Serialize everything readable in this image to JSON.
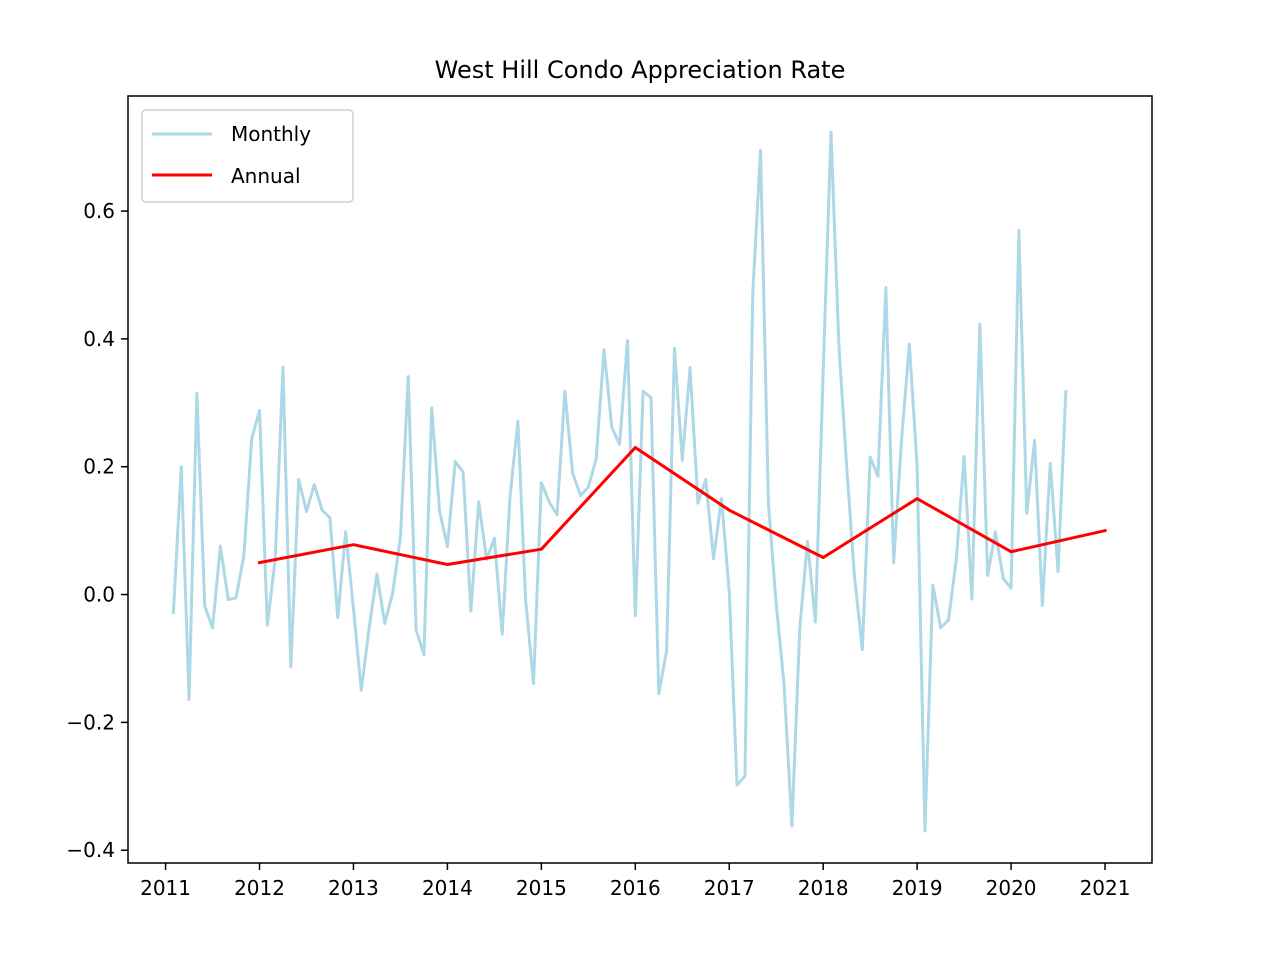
{
  "chart_data": {
    "type": "line",
    "title": "West Hill Condo Appreciation Rate",
    "xlabel": "",
    "ylabel": "",
    "xlim": [
      2010.6,
      2021.5
    ],
    "ylim": [
      -0.42,
      0.78
    ],
    "x_ticks": [
      2011,
      2012,
      2013,
      2014,
      2015,
      2016,
      2017,
      2018,
      2019,
      2020,
      2021
    ],
    "x_tick_labels": [
      "2011",
      "2012",
      "2013",
      "2014",
      "2015",
      "2016",
      "2017",
      "2018",
      "2019",
      "2020",
      "2021"
    ],
    "y_ticks": [
      -0.4,
      -0.2,
      0.0,
      0.2,
      0.4,
      0.6
    ],
    "y_tick_labels": [
      "−0.4",
      "−0.2",
      "0.0",
      "0.2",
      "0.4",
      "0.6"
    ],
    "grid": false,
    "legend_position": "top-left",
    "series": [
      {
        "name": "Monthly",
        "color": "#add8e6",
        "x": [
          2011.083,
          2011.167,
          2011.25,
          2011.333,
          2011.417,
          2011.5,
          2011.583,
          2011.667,
          2011.75,
          2011.833,
          2011.917,
          2012.0,
          2012.083,
          2012.167,
          2012.25,
          2012.333,
          2012.417,
          2012.5,
          2012.583,
          2012.667,
          2012.75,
          2012.833,
          2012.917,
          2013.0,
          2013.083,
          2013.167,
          2013.25,
          2013.333,
          2013.417,
          2013.5,
          2013.583,
          2013.667,
          2013.75,
          2013.833,
          2013.917,
          2014.0,
          2014.083,
          2014.167,
          2014.25,
          2014.333,
          2014.417,
          2014.5,
          2014.583,
          2014.667,
          2014.75,
          2014.833,
          2014.917,
          2015.0,
          2015.083,
          2015.167,
          2015.25,
          2015.333,
          2015.417,
          2015.5,
          2015.583,
          2015.667,
          2015.75,
          2015.833,
          2015.917,
          2016.0,
          2016.083,
          2016.167,
          2016.25,
          2016.333,
          2016.417,
          2016.5,
          2016.583,
          2016.667,
          2016.75,
          2016.833,
          2016.917,
          2017.0,
          2017.083,
          2017.167,
          2017.25,
          2017.333,
          2017.417,
          2017.5,
          2017.583,
          2017.667,
          2017.75,
          2017.833,
          2017.917,
          2018.0,
          2018.083,
          2018.167,
          2018.25,
          2018.333,
          2018.417,
          2018.5,
          2018.583,
          2018.667,
          2018.75,
          2018.833,
          2018.917,
          2019.0,
          2019.083,
          2019.167,
          2019.25,
          2019.333,
          2019.417,
          2019.5,
          2019.583,
          2019.667,
          2019.75,
          2019.833,
          2019.917,
          2020.0,
          2020.083,
          2020.167,
          2020.25,
          2020.333,
          2020.417,
          2020.5,
          2020.583
        ],
        "values": [
          -0.028,
          0.2,
          -0.164,
          0.315,
          -0.018,
          -0.052,
          0.076,
          -0.008,
          -0.005,
          0.06,
          0.244,
          0.288,
          -0.048,
          0.056,
          0.356,
          -0.113,
          0.18,
          0.13,
          0.172,
          0.132,
          0.12,
          -0.036,
          0.098,
          -0.022,
          -0.15,
          -0.052,
          0.032,
          -0.045,
          0.002,
          0.09,
          0.341,
          -0.055,
          -0.094,
          0.292,
          0.13,
          0.075,
          0.208,
          0.192,
          -0.026,
          0.145,
          0.055,
          0.088,
          -0.062,
          0.154,
          0.271,
          -0.01,
          -0.139,
          0.175,
          0.145,
          0.125,
          0.318,
          0.19,
          0.155,
          0.168,
          0.212,
          0.383,
          0.262,
          0.235,
          0.397,
          -0.033,
          0.318,
          0.308,
          -0.155,
          -0.088,
          0.385,
          0.21,
          0.355,
          0.143,
          0.18,
          0.056,
          0.15,
          0.005,
          -0.298,
          -0.284,
          0.47,
          0.695,
          0.142,
          -0.015,
          -0.14,
          -0.362,
          -0.054,
          0.083,
          -0.043,
          0.35,
          0.723,
          0.39,
          0.2,
          0.028,
          -0.086,
          0.215,
          0.185,
          0.48,
          0.05,
          0.24,
          0.392,
          0.2,
          -0.37,
          0.015,
          -0.052,
          -0.04,
          0.055,
          0.216,
          -0.007,
          0.423,
          0.03,
          0.098,
          0.025,
          0.01,
          0.57,
          0.127,
          0.241,
          -0.017,
          0.205,
          0.036,
          0.318
        ]
      },
      {
        "name": "Annual",
        "color": "#ff0000",
        "x": [
          2012,
          2013,
          2014,
          2015,
          2016,
          2017,
          2018,
          2019,
          2020,
          2021
        ],
        "values": [
          0.05,
          0.078,
          0.047,
          0.071,
          0.23,
          0.132,
          0.058,
          0.15,
          0.067,
          0.1
        ]
      }
    ]
  }
}
